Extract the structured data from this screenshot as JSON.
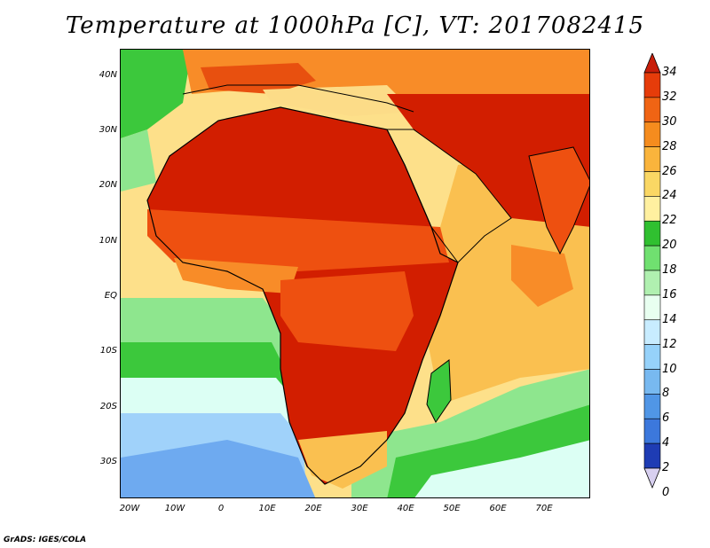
{
  "title": "Temperature at 1000hPa [C], VT: 2017082415",
  "credit": "GrADS: IGES/COLA",
  "lat_labels": [
    "40N",
    "30N",
    "20N",
    "10N",
    "EQ",
    "10S",
    "20S",
    "30S"
  ],
  "lon_labels": [
    "20W",
    "10W",
    "0",
    "10E",
    "20E",
    "30E",
    "40E",
    "50E",
    "60E",
    "70E"
  ],
  "colorbar": {
    "levels": [
      "34",
      "32",
      "30",
      "28",
      "26",
      "24",
      "22",
      "20",
      "18",
      "16",
      "14",
      "12",
      "10",
      "8",
      "6",
      "4",
      "2",
      "0"
    ],
    "colors": [
      "#c81e0a",
      "#e63c0a",
      "#f06414",
      "#f58c1e",
      "#fab43c",
      "#fad764",
      "#fff0a0",
      "#30c030",
      "#70e070",
      "#b0f0b0",
      "#e8fff0",
      "#c8ecff",
      "#96d2fa",
      "#78b9f0",
      "#5096e6",
      "#3c78dc",
      "#1e3cb4",
      "#0a1464"
    ],
    "top_color": "#c81e0a",
    "bottom_color": "#d8d0f0"
  },
  "legend_colors": {
    "hot": "#d21e00",
    "very_warm": "#ee5010",
    "warm": "#f88c28",
    "mild": "#fac050",
    "pale": "#fcdc88",
    "green": "#3cc83c",
    "light_green": "#8ee68e",
    "cyan": "#dcfff4",
    "light_blue": "#a0d2fa",
    "blue": "#6eaaf0",
    "ocean": "#fde08a"
  }
}
